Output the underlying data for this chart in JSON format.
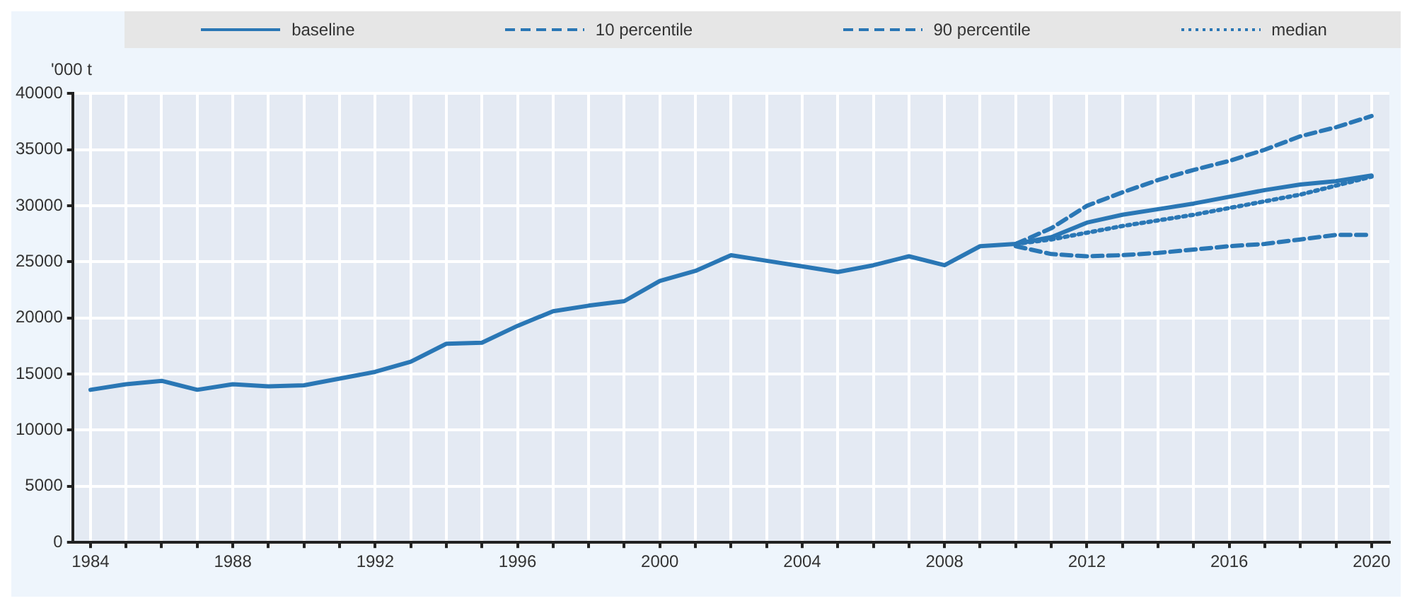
{
  "chart_data": {
    "type": "line",
    "ylabel": "'000 t",
    "legend": "top",
    "grid": true,
    "xlim": [
      1983.5,
      2020.5
    ],
    "xticks": [
      1984,
      {
        "value": 1985,
        "label": null
      },
      {
        "value": 1986,
        "label": null
      },
      {
        "value": 1987,
        "label": null
      },
      1988,
      {
        "value": 1989,
        "label": null
      },
      {
        "value": 1990,
        "label": null
      },
      {
        "value": 1991,
        "label": null
      },
      1992,
      {
        "value": 1993,
        "label": null
      },
      {
        "value": 1994,
        "label": null
      },
      {
        "value": 1995,
        "label": null
      },
      1996,
      {
        "value": 1997,
        "label": null
      },
      {
        "value": 1998,
        "label": null
      },
      {
        "value": 1999,
        "label": null
      },
      2000,
      {
        "value": 2001,
        "label": null
      },
      {
        "value": 2002,
        "label": null
      },
      {
        "value": 2003,
        "label": null
      },
      2004,
      {
        "value": 2005,
        "label": null
      },
      {
        "value": 2006,
        "label": null
      },
      {
        "value": 2007,
        "label": null
      },
      2008,
      {
        "value": 2009,
        "label": null
      },
      {
        "value": 2010,
        "label": null
      },
      {
        "value": 2011,
        "label": null
      },
      2012,
      {
        "value": 2013,
        "label": null
      },
      {
        "value": 2014,
        "label": null
      },
      {
        "value": 2015,
        "label": null
      },
      2016,
      {
        "value": 2017,
        "label": null
      },
      {
        "value": 2018,
        "label": null
      },
      {
        "value": 2019,
        "label": null
      },
      2020
    ],
    "ylim": [
      0,
      40000
    ],
    "yticks": [
      0,
      5000,
      10000,
      15000,
      20000,
      25000,
      30000,
      35000,
      40000
    ],
    "series": [
      {
        "name": "baseline",
        "color": "#2a77b5",
        "line_style": "solid",
        "x": [
          1984,
          1985,
          1986,
          1987,
          1988,
          1989,
          1990,
          1991,
          1992,
          1993,
          1994,
          1995,
          1996,
          1997,
          1998,
          1999,
          2000,
          2001,
          2002,
          2003,
          2004,
          2005,
          2006,
          2007,
          2008,
          2009,
          2010,
          2011,
          2012,
          2013,
          2014,
          2015,
          2016,
          2017,
          2018,
          2019,
          2020
        ],
        "values": [
          13600,
          14100,
          14400,
          13600,
          14100,
          13900,
          14000,
          14600,
          15200,
          16100,
          17700,
          17800,
          19300,
          20600,
          21100,
          21500,
          23300,
          24200,
          25600,
          25100,
          24600,
          24100,
          24700,
          25500,
          24700,
          26400,
          26600,
          27200,
          28500,
          29200,
          29700,
          30200,
          30800,
          31400,
          31900,
          32200,
          32700
        ]
      },
      {
        "name": "10 percentile",
        "color": "#2a77b5",
        "line_style": "dashed",
        "x": [
          2010,
          2011,
          2012,
          2013,
          2014,
          2015,
          2016,
          2017,
          2018,
          2019,
          2020
        ],
        "values": [
          26400,
          25700,
          25500,
          25600,
          25800,
          26100,
          26400,
          26600,
          27000,
          27400,
          27400
        ]
      },
      {
        "name": "90 percentile",
        "color": "#2a77b5",
        "line_style": "dashed",
        "x": [
          2010,
          2011,
          2012,
          2013,
          2014,
          2015,
          2016,
          2017,
          2018,
          2019,
          2020
        ],
        "values": [
          26600,
          28000,
          30000,
          31200,
          32300,
          33200,
          34000,
          35000,
          36200,
          37000,
          38000
        ]
      },
      {
        "name": "median",
        "color": "#2a77b5",
        "line_style": "dotted",
        "x": [
          2010,
          2011,
          2012,
          2013,
          2014,
          2015,
          2016,
          2017,
          2018,
          2019,
          2020
        ],
        "values": [
          26600,
          27000,
          27600,
          28200,
          28700,
          29200,
          29800,
          30400,
          31000,
          31800,
          32600
        ]
      }
    ]
  }
}
